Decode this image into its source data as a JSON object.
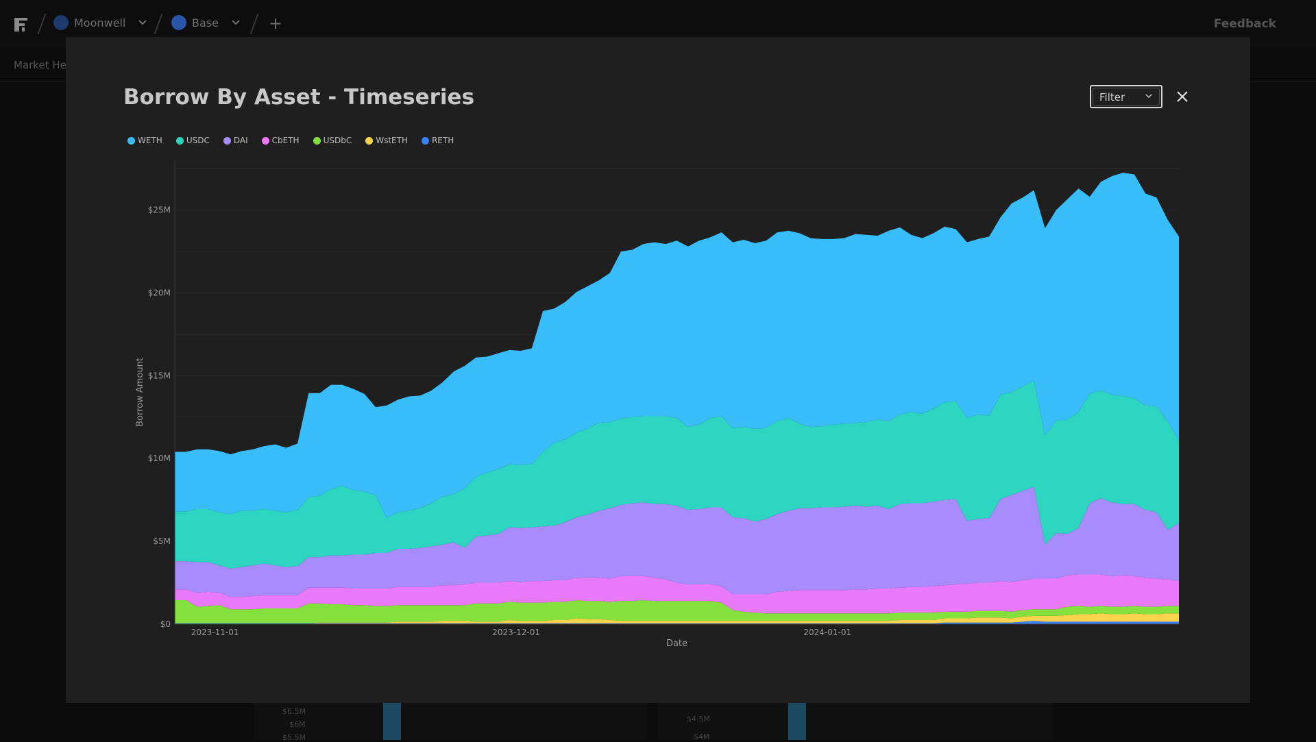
{
  "topbar": {
    "project": "Moonwell",
    "chain": "Base",
    "add_label": "+",
    "feedback": "Feedback"
  },
  "subnav": {
    "label": "Market Hea"
  },
  "background_ticks": [
    "$6.5M",
    "$6M",
    "$5.5M",
    "$4.5M",
    "$4M"
  ],
  "modal": {
    "title": "Borrow By Asset - Timeseries",
    "filter_label": "Filter"
  },
  "colors": {
    "WETH": "#38bdf8",
    "USDC": "#2dd4bf",
    "DAI": "#a78bfa",
    "CbETH": "#e879f9",
    "USDbC": "#84e03c",
    "WstETH": "#fcd34d",
    "RETH": "#3b82f6"
  },
  "chart_data": {
    "type": "area",
    "stacked": true,
    "title": "Borrow By Asset - Timeseries",
    "xlabel": "Date",
    "ylabel": "Borrow Amount",
    "ylim": [
      0,
      28000000
    ],
    "yticks": [
      "$0",
      "$5M",
      "$10M",
      "$15M",
      "$20M",
      "$25M"
    ],
    "xticks": [
      "2023-11-01",
      "2023-12-01",
      "2024-01-01"
    ],
    "x_start": "2023-10-28",
    "x_end": "2024-02-05",
    "legend_position": "top-left",
    "series": [
      {
        "name": "RETH",
        "values": [
          0.05,
          0.05,
          0.05,
          0.05,
          0.05,
          0.05,
          0.05,
          0.05,
          0.05,
          0.05,
          0.05,
          0.05,
          0.05,
          0.05,
          0.05,
          0.05,
          0.05,
          0.05,
          0.05,
          0.05,
          0.05,
          0.05,
          0.05,
          0.05,
          0.05,
          0.05,
          0.05,
          0.05,
          0.05,
          0.05,
          0.05,
          0.05,
          0.05,
          0.05,
          0.05,
          0.05,
          0.05,
          0.05,
          0.05,
          0.05,
          0.05,
          0.05,
          0.05,
          0.05,
          0.05,
          0.05,
          0.05,
          0.05,
          0.05,
          0.05,
          0.05,
          0.05,
          0.05,
          0.05,
          0.05,
          0.05,
          0.05,
          0.05,
          0.05,
          0.05,
          0.05,
          0.05,
          0.05,
          0.05,
          0.05,
          0.05,
          0.05,
          0.05,
          0.05,
          0.1,
          0.1,
          0.1,
          0.1,
          0.1,
          0.1,
          0.1,
          0.15,
          0.2,
          0.15,
          0.15,
          0.15,
          0.15,
          0.15,
          0.15,
          0.15,
          0.15,
          0.15,
          0.15,
          0.15,
          0.15,
          0.15
        ]
      },
      {
        "name": "WstETH",
        "values": [
          0,
          0,
          0,
          0,
          0,
          0,
          0,
          0,
          0,
          0,
          0,
          0,
          0,
          0.05,
          0.05,
          0.05,
          0.05,
          0.05,
          0.05,
          0.05,
          0.1,
          0.1,
          0.1,
          0.1,
          0.15,
          0.15,
          0.15,
          0.1,
          0.1,
          0.1,
          0.2,
          0.15,
          0.15,
          0.15,
          0.2,
          0.2,
          0.3,
          0.25,
          0.25,
          0.2,
          0.15,
          0.15,
          0.15,
          0.15,
          0.15,
          0.15,
          0.15,
          0.15,
          0.15,
          0.15,
          0.15,
          0.15,
          0.15,
          0.15,
          0.15,
          0.15,
          0.15,
          0.15,
          0.15,
          0.15,
          0.15,
          0.15,
          0.15,
          0.15,
          0.15,
          0.2,
          0.2,
          0.2,
          0.2,
          0.25,
          0.25,
          0.25,
          0.3,
          0.3,
          0.3,
          0.25,
          0.3,
          0.3,
          0.35,
          0.35,
          0.4,
          0.45,
          0.45,
          0.5,
          0.45,
          0.45,
          0.5,
          0.45,
          0.45,
          0.5,
          0.5
        ]
      },
      {
        "name": "USDbC",
        "values": [
          1.4,
          1.4,
          1.0,
          1.05,
          1.1,
          0.85,
          0.85,
          0.85,
          0.9,
          0.9,
          0.9,
          0.9,
          1.2,
          1.15,
          1.1,
          1.1,
          1.05,
          1.05,
          1.0,
          1.0,
          1.0,
          1.0,
          1.0,
          1.0,
          0.95,
          0.95,
          0.95,
          1.1,
          1.1,
          1.1,
          1.1,
          1.1,
          1.1,
          1.1,
          1.1,
          1.1,
          1.1,
          1.1,
          1.1,
          1.1,
          1.2,
          1.2,
          1.25,
          1.2,
          1.2,
          1.2,
          1.2,
          1.2,
          1.2,
          1.1,
          0.65,
          0.55,
          0.5,
          0.45,
          0.45,
          0.45,
          0.45,
          0.45,
          0.45,
          0.45,
          0.45,
          0.45,
          0.45,
          0.45,
          0.45,
          0.45,
          0.45,
          0.45,
          0.45,
          0.4,
          0.4,
          0.4,
          0.4,
          0.4,
          0.4,
          0.4,
          0.4,
          0.4,
          0.4,
          0.4,
          0.5,
          0.5,
          0.45,
          0.45,
          0.45,
          0.45,
          0.45,
          0.45,
          0.45,
          0.45,
          0.45
        ]
      },
      {
        "name": "CbETH",
        "values": [
          0.65,
          0.65,
          0.85,
          0.85,
          0.75,
          0.75,
          0.75,
          0.8,
          0.8,
          0.8,
          0.8,
          0.8,
          0.95,
          0.95,
          1.0,
          1.0,
          1.0,
          1.0,
          1.05,
          1.05,
          1.1,
          1.1,
          1.1,
          1.1,
          1.2,
          1.2,
          1.25,
          1.25,
          1.25,
          1.25,
          1.25,
          1.25,
          1.3,
          1.3,
          1.3,
          1.3,
          1.35,
          1.4,
          1.4,
          1.4,
          1.5,
          1.5,
          1.45,
          1.4,
          1.3,
          1.1,
          1.0,
          1.0,
          1.0,
          1.0,
          0.95,
          1.05,
          1.1,
          1.15,
          1.3,
          1.35,
          1.4,
          1.4,
          1.4,
          1.4,
          1.4,
          1.45,
          1.45,
          1.5,
          1.5,
          1.5,
          1.55,
          1.55,
          1.6,
          1.6,
          1.65,
          1.7,
          1.7,
          1.7,
          1.8,
          1.8,
          1.8,
          1.85,
          1.85,
          1.85,
          1.9,
          1.9,
          1.95,
          1.9,
          1.85,
          1.9,
          1.8,
          1.75,
          1.7,
          1.6,
          1.5
        ]
      },
      {
        "name": "DAI",
        "values": [
          1.7,
          1.7,
          1.85,
          1.8,
          1.65,
          1.7,
          1.8,
          1.85,
          1.9,
          1.8,
          1.7,
          1.75,
          1.85,
          1.85,
          1.95,
          1.95,
          2.05,
          2.05,
          2.15,
          2.15,
          2.3,
          2.3,
          2.35,
          2.45,
          2.45,
          2.6,
          2.2,
          2.8,
          2.85,
          2.95,
          3.25,
          3.25,
          3.25,
          3.3,
          3.3,
          3.5,
          3.65,
          3.8,
          4.05,
          4.25,
          4.3,
          4.4,
          4.45,
          4.45,
          4.55,
          4.65,
          4.5,
          4.55,
          4.65,
          4.75,
          4.65,
          4.6,
          4.4,
          4.55,
          4.7,
          4.85,
          4.95,
          4.95,
          5.0,
          5.0,
          5.05,
          5.05,
          5.0,
          5.0,
          4.8,
          5.05,
          5.05,
          5.05,
          5.1,
          5.15,
          5.15,
          3.8,
          3.85,
          3.9,
          4.95,
          5.25,
          5.4,
          5.55,
          2.05,
          2.75,
          2.5,
          2.8,
          4.3,
          4.6,
          4.45,
          4.3,
          4.35,
          4.1,
          4.0,
          3.0,
          3.5
        ]
      },
      {
        "name": "USDC",
        "values": [
          3.0,
          3.0,
          3.2,
          3.2,
          3.2,
          3.3,
          3.4,
          3.3,
          3.3,
          3.3,
          3.3,
          3.4,
          3.6,
          3.7,
          4.0,
          4.2,
          3.9,
          3.8,
          3.5,
          2.1,
          2.2,
          2.3,
          2.4,
          2.6,
          2.9,
          2.9,
          3.6,
          3.6,
          3.8,
          3.9,
          3.8,
          3.8,
          3.8,
          4.5,
          5.0,
          5.0,
          5.1,
          5.2,
          5.3,
          5.2,
          5.2,
          5.2,
          5.2,
          5.3,
          5.3,
          5.3,
          5.0,
          5.1,
          5.4,
          5.5,
          5.4,
          5.5,
          5.6,
          5.5,
          5.6,
          5.6,
          5.1,
          4.9,
          4.9,
          5.0,
          5.0,
          5.0,
          5.1,
          5.2,
          5.3,
          5.4,
          5.5,
          5.4,
          5.6,
          5.9,
          5.9,
          6.2,
          6.3,
          6.2,
          6.3,
          6.2,
          6.3,
          6.4,
          6.6,
          6.8,
          6.9,
          7.0,
          6.6,
          6.5,
          6.5,
          6.5,
          6.4,
          6.3,
          6.4,
          6.5,
          5.0
        ]
      },
      {
        "name": "WETH",
        "values": [
          3.6,
          3.6,
          3.6,
          3.6,
          3.7,
          3.6,
          3.6,
          3.7,
          3.8,
          4.0,
          3.9,
          4.0,
          6.3,
          6.2,
          6.3,
          6.1,
          6.1,
          5.9,
          5.3,
          6.8,
          6.8,
          6.9,
          6.8,
          6.8,
          6.9,
          7.4,
          7.4,
          7.2,
          7.0,
          7.0,
          6.9,
          6.9,
          7.0,
          8.5,
          8.1,
          8.3,
          8.5,
          8.6,
          8.6,
          9.0,
          10.1,
          10.1,
          10.4,
          10.5,
          10.4,
          10.7,
          10.9,
          11.1,
          10.9,
          11.1,
          11.2,
          11.3,
          11.2,
          11.3,
          11.4,
          11.3,
          11.5,
          11.4,
          11.3,
          11.2,
          11.2,
          11.4,
          11.3,
          11.1,
          11.5,
          11.3,
          10.7,
          10.6,
          10.6,
          10.6,
          10.4,
          10.6,
          10.6,
          10.8,
          10.7,
          11.4,
          11.4,
          11.5,
          12.5,
          12.7,
          13.3,
          13.5,
          11.9,
          12.6,
          13.2,
          13.5,
          13.5,
          12.8,
          12.6,
          12.2,
          12.3
        ]
      }
    ]
  }
}
